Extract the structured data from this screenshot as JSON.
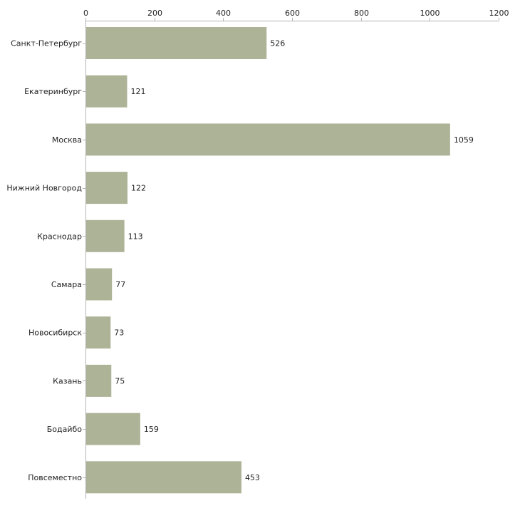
{
  "chart_data": {
    "type": "bar",
    "orientation": "horizontal",
    "title": "",
    "xlabel": "",
    "ylabel": "",
    "xlim": [
      0,
      1200
    ],
    "ticks": [
      0,
      200,
      400,
      600,
      800,
      1000,
      1200
    ],
    "tick_labels": [
      "0",
      "200",
      "400",
      "600",
      "800",
      "1000",
      "1200"
    ],
    "categories": [
      "Санкт-Петербург",
      "Екатеринбург",
      "Москва",
      "Нижний Новгород",
      "Краснодар",
      "Самара",
      "Новосибирск",
      "Казань",
      "Бодайбо",
      "Повсеместно"
    ],
    "values": [
      526,
      121,
      1059,
      122,
      113,
      77,
      73,
      75,
      159,
      453
    ],
    "value_labels": [
      "526",
      "121",
      "1059",
      "122",
      "113",
      "77",
      "73",
      "75",
      "159",
      "453"
    ],
    "axis_position": "top",
    "grid": false,
    "colors": {
      "bar": "#adb396",
      "axis": "#b3b3b3",
      "text": "#222222"
    }
  }
}
